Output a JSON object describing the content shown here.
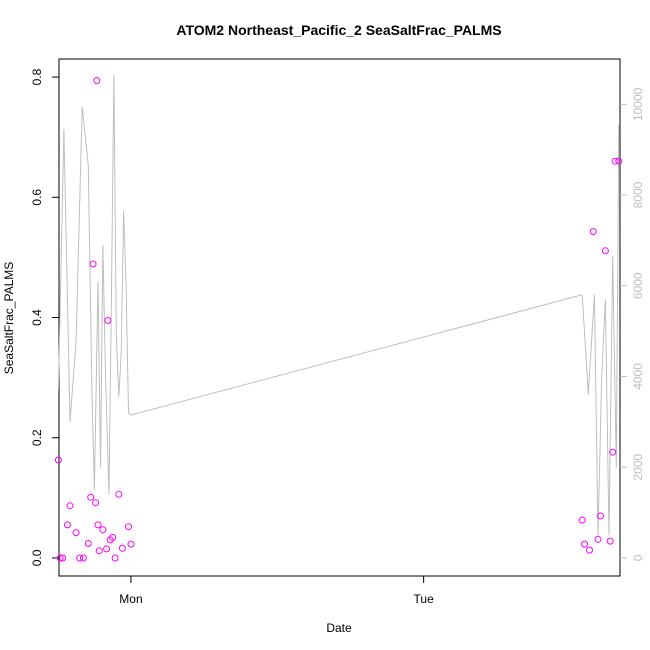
{
  "chart_data": {
    "type": "scatter",
    "title": "ATOM2 Northeast_Pacific_2 SeaSaltFrac_PALMS",
    "xlabel": "Date",
    "ylabel": "SeaSaltFrac_PALMS",
    "x_ticks": [
      {
        "label": "Mon",
        "value": 0
      },
      {
        "label": "Tue",
        "value": 24
      }
    ],
    "xlim": [
      -5.9,
      40.1
    ],
    "ylim": [
      -0.03,
      0.83
    ],
    "y_ticks": [
      0.0,
      0.2,
      0.4,
      0.6,
      0.8
    ],
    "y2lim": [
      -400,
      11000
    ],
    "y2_ticks": [
      0,
      2000,
      4000,
      6000,
      8000,
      10000
    ],
    "colors": {
      "points": "#ff00ff",
      "line": "#bebebe"
    },
    "series": [
      {
        "kind": "points",
        "axis": "left",
        "x": [
          -5.95,
          -5.8,
          -5.6,
          -5.2,
          -5.0,
          -4.5,
          -4.2,
          -3.9,
          -3.5,
          -3.3,
          -3.1,
          -2.9,
          -2.8,
          -2.7,
          -2.6,
          -2.3,
          -2.0,
          -1.9,
          -1.7,
          -1.5,
          -1.3,
          -1.0,
          -0.7,
          -0.2,
          37.0,
          37.2,
          37.6,
          37.9,
          38.3,
          38.5,
          38.9,
          39.3
        ],
        "y": [
          0.163,
          0.0,
          0.0,
          0.055,
          0.087,
          0.042,
          0.0,
          0.0,
          0.024,
          0.101,
          0.489,
          0.092,
          0.794,
          0.055,
          0.012,
          0.047,
          0.015,
          0.395,
          0.03,
          0.034,
          0.0,
          0.106,
          0.016,
          0.052,
          0.063,
          0.023,
          0.013,
          0.543,
          0.031,
          0.07,
          0.511,
          0.028
        ]
      },
      {
        "kind": "points",
        "axis": "left",
        "x": [
          0.0,
          39.5,
          39.7,
          40.0
        ],
        "y": [
          0.023,
          0.176,
          0.66,
          0.66
        ]
      },
      {
        "kind": "line",
        "axis": "right",
        "x": [
          -5.95,
          -5.5,
          -5.0,
          -4.5,
          -4.0,
          -3.5,
          -3.2,
          -3.0,
          -2.7,
          -2.5,
          -2.3,
          -2.1,
          -1.8,
          -1.6,
          -1.4,
          -1.2,
          -1.0,
          -0.8,
          -0.6,
          -0.4,
          -0.2,
          0.0,
          37.0,
          37.5,
          38.0,
          38.3,
          38.6,
          38.9,
          39.2,
          39.5,
          39.8,
          40.0
        ],
        "y": [
          3700,
          9450,
          3000,
          4800,
          9950,
          8650,
          3700,
          1500,
          6100,
          2000,
          6900,
          4200,
          1400,
          5700,
          10650,
          4900,
          3550,
          4500,
          7650,
          6000,
          3200,
          3150,
          5800,
          3600,
          5800,
          500,
          4000,
          5700,
          500,
          6650,
          2000,
          9550
        ]
      }
    ]
  }
}
